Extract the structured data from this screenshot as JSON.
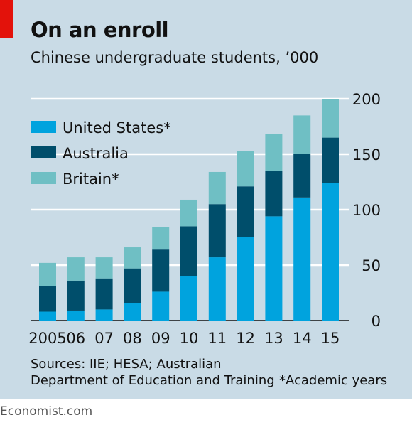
{
  "header": {
    "title": "On an enroll",
    "subtitle": "Chinese undergraduate students, ’000"
  },
  "footer": {
    "source_line1": "Sources: IIE; HESA; Australian",
    "source_line2": "Department of Education and Training",
    "footnote": "*Academic years",
    "brand": "Economist.com"
  },
  "colors": {
    "background": "#c9dbe6",
    "accent_red": "#e3120b",
    "united_states": "#00a3de",
    "australia": "#004e6b",
    "britain": "#6fbfc4"
  },
  "chart_data": {
    "type": "bar",
    "stacked": true,
    "title": "On an enroll",
    "subtitle": "Chinese undergraduate students, ’000",
    "categories": [
      "2005",
      "06",
      "07",
      "08",
      "09",
      "10",
      "11",
      "12",
      "13",
      "14",
      "15"
    ],
    "series": [
      {
        "name": "United States*",
        "color": "#00a3de",
        "values": [
          8,
          9,
          10,
          16,
          26,
          40,
          57,
          75,
          94,
          111,
          124
        ]
      },
      {
        "name": "Australia",
        "color": "#004e6b",
        "values": [
          23,
          27,
          28,
          31,
          38,
          45,
          48,
          46,
          41,
          39,
          41
        ]
      },
      {
        "name": "Britain*",
        "color": "#6fbfc4",
        "values": [
          21,
          21,
          19,
          19,
          20,
          24,
          29,
          32,
          33,
          35,
          35
        ]
      }
    ],
    "ylim": [
      0,
      200
    ],
    "yticks": [
      0,
      50,
      100,
      150,
      200
    ],
    "y_axis_side": "right",
    "grid": true,
    "legend": "top-left"
  }
}
